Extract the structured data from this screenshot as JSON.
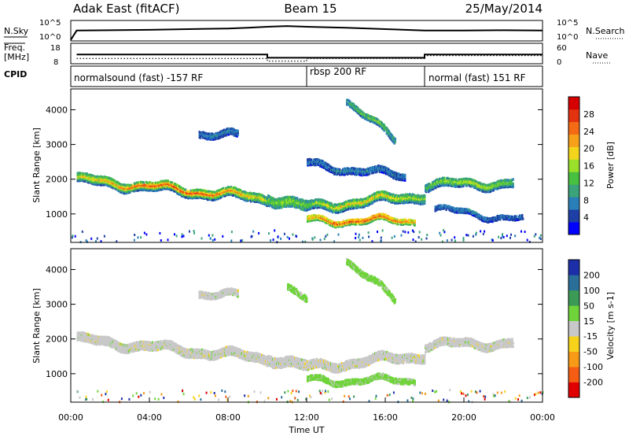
{
  "header": {
    "title_left": "Adak East (fitACF)",
    "title_center": "Beam 15",
    "title_right": "25/May/2014"
  },
  "top_panels": {
    "nsky_label": "N.Sky",
    "nsearch_label": "N.Search",
    "freq_label_1": "Freq.",
    "freq_label_2": "[MHz]",
    "nave_label": "Nave",
    "cpid_label": "CPID",
    "noise_ticks": [
      "10^5",
      "10^0"
    ],
    "noise_ticks_right": [
      "10^5",
      "10^0"
    ],
    "freq_ticks": [
      "18",
      "8"
    ],
    "nave_ticks": [
      "60",
      "0"
    ],
    "noise_sky_log": [
      {
        "t": 0.0,
        "v": 0.3
      },
      {
        "t": 0.3,
        "v": 3.0
      },
      {
        "t": 2.0,
        "v": 3.1
      },
      {
        "t": 4.0,
        "v": 3.2
      },
      {
        "t": 6.0,
        "v": 3.4
      },
      {
        "t": 8.0,
        "v": 3.6
      },
      {
        "t": 9.0,
        "v": 3.8
      },
      {
        "t": 10.0,
        "v": 4.1
      },
      {
        "t": 11.0,
        "v": 4.3
      },
      {
        "t": 12.0,
        "v": 4.1
      },
      {
        "t": 14.0,
        "v": 3.8
      },
      {
        "t": 16.0,
        "v": 3.4
      },
      {
        "t": 18.0,
        "v": 3.0
      },
      {
        "t": 20.0,
        "v": 3.0
      },
      {
        "t": 22.0,
        "v": 3.1
      },
      {
        "t": 24.0,
        "v": 3.0
      }
    ],
    "freq_mhz": [
      {
        "t": 0.3,
        "v": 12.4
      },
      {
        "t": 10.0,
        "v": 12.4
      },
      {
        "t": 10.0,
        "v": 10.3
      },
      {
        "t": 18.0,
        "v": 10.3
      },
      {
        "t": 18.0,
        "v": 12.4
      },
      {
        "t": 24.0,
        "v": 12.4
      }
    ],
    "nave": [
      {
        "t": 0.3,
        "v": 14
      },
      {
        "t": 10.0,
        "v": 14
      },
      {
        "t": 10.0,
        "v": 4
      },
      {
        "t": 12.0,
        "v": 4
      },
      {
        "t": 12.0,
        "v": 14
      },
      {
        "t": 18.0,
        "v": 14
      },
      {
        "t": 18.0,
        "v": 25
      },
      {
        "t": 24.0,
        "v": 25
      }
    ],
    "cpid_modes": [
      {
        "start": 0.0,
        "end": 12.0,
        "label": "normalsound (fast) -157 RF"
      },
      {
        "start": 12.0,
        "end": 18.0,
        "label": "rbsp 200 RF"
      },
      {
        "start": 18.0,
        "end": 24.0,
        "label": "normal (fast) 151 RF"
      }
    ]
  },
  "chart_data": [
    {
      "type": "heatmap",
      "name": "power",
      "ylabel": "Slant Range [km]",
      "ylim": [
        180,
        4600
      ],
      "xlim": [
        0,
        24
      ],
      "yticks": [
        "1000",
        "2000",
        "3000",
        "4000"
      ],
      "colorbar_label": "Power [dB]",
      "colorbar_ticks": [
        "4",
        "8",
        "12",
        "16",
        "20",
        "24",
        "28"
      ],
      "colorbar_range": [
        0,
        31
      ],
      "colors": [
        "#0000ff",
        "#1d3fa6",
        "#2b7fb8",
        "#3aa37a",
        "#48c040",
        "#9adf2a",
        "#f3d61b",
        "#f7a01a",
        "#f56a15",
        "#e23210",
        "#d60000"
      ],
      "bands": [
        {
          "t0": 0.3,
          "t1": 10.0,
          "r0": 2000,
          "r1": 1450,
          "w": 260,
          "p0": 6,
          "p1": 26
        },
        {
          "t0": 10.0,
          "t1": 12.0,
          "r0": 1500,
          "r1": 1200,
          "w": 300,
          "p0": 8,
          "p1": 16
        },
        {
          "t0": 12.0,
          "t1": 18.0,
          "r0": 1200,
          "r1": 1550,
          "w": 260,
          "p0": 6,
          "p1": 20
        },
        {
          "t0": 18.0,
          "t1": 22.5,
          "r0": 1850,
          "r1": 1900,
          "w": 240,
          "p0": 6,
          "p1": 18
        },
        {
          "t0": 12.0,
          "t1": 17.5,
          "r0": 820,
          "r1": 820,
          "w": 160,
          "p0": 12,
          "p1": 26
        },
        {
          "t0": 6.5,
          "t1": 8.5,
          "r0": 3350,
          "r1": 3250,
          "w": 200,
          "p0": 4,
          "p1": 8
        },
        {
          "t0": 14.0,
          "t1": 16.5,
          "r0": 4300,
          "r1": 3100,
          "w": 180,
          "p0": 6,
          "p1": 14
        },
        {
          "t0": 12.0,
          "t1": 17.0,
          "r0": 2450,
          "r1": 2100,
          "w": 200,
          "p0": 4,
          "p1": 8
        },
        {
          "t0": 18.5,
          "t1": 23.0,
          "r0": 1150,
          "r1": 850,
          "w": 140,
          "p0": 4,
          "p1": 8
        }
      ]
    },
    {
      "type": "heatmap",
      "name": "velocity",
      "xlabel": "Time UT",
      "ylabel": "Slant Range [km]",
      "ylim": [
        180,
        4600
      ],
      "xlim": [
        0,
        24
      ],
      "yticks": [
        "1000",
        "2000",
        "3000",
        "4000"
      ],
      "xticks": [
        "00:00",
        "04:00",
        "08:00",
        "12:00",
        "16:00",
        "20:00",
        "00:00"
      ],
      "colorbar_label": "Velocity [m s-1]",
      "colorbar_ticks": [
        "200",
        "100",
        "50",
        "15",
        "-15",
        "-50",
        "-100",
        "-200"
      ],
      "colors": [
        "#1c2fa8",
        "#2a6f9a",
        "#3b9a55",
        "#6fd43a",
        "#c8c8c8",
        "#f7d21b",
        "#f79a16",
        "#f45d13",
        "#e10000"
      ],
      "bands": [
        {
          "t0": 0.3,
          "t1": 10.0,
          "r0": 2000,
          "r1": 1450,
          "w": 260,
          "v": 0
        },
        {
          "t0": 10.0,
          "t1": 12.0,
          "r0": 1500,
          "r1": 1200,
          "w": 300,
          "v": 0
        },
        {
          "t0": 12.0,
          "t1": 18.0,
          "r0": 1200,
          "r1": 1550,
          "w": 260,
          "v": 0
        },
        {
          "t0": 18.0,
          "t1": 22.5,
          "r0": 1850,
          "r1": 1900,
          "w": 240,
          "v": 0
        },
        {
          "t0": 12.0,
          "t1": 17.5,
          "r0": 820,
          "r1": 820,
          "w": 160,
          "v": 35
        },
        {
          "t0": 6.5,
          "t1": 8.5,
          "r0": 3350,
          "r1": 3250,
          "w": 200,
          "v": 0
        },
        {
          "t0": 14.0,
          "t1": 16.5,
          "r0": 4300,
          "r1": 3100,
          "w": 180,
          "v": 35
        },
        {
          "t0": 11.0,
          "t1": 12.0,
          "r0": 3500,
          "r1": 3100,
          "w": 200,
          "v": 35
        }
      ]
    }
  ]
}
